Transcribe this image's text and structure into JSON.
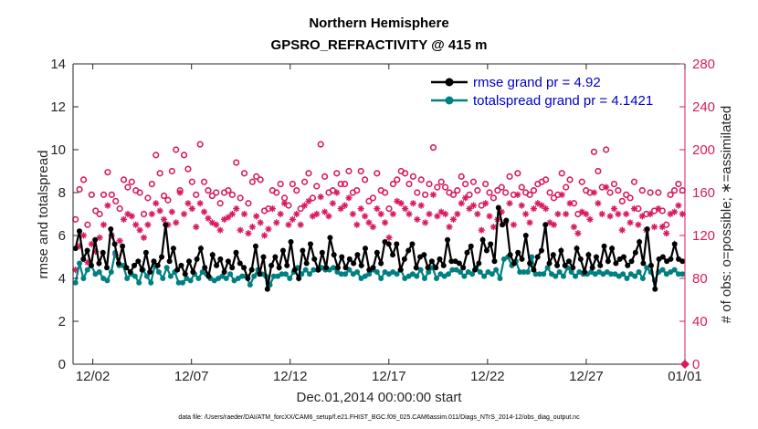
{
  "chart_data": {
    "type": "line",
    "title": "Northern Hemisphere",
    "subtitle": "GPSRO_REFRACTIVITY @ 415 m",
    "xlabel": "Dec.01,2014 00:00:00 start",
    "ylabel": "rmse and totalspread",
    "y2label": "# of obs: o=possible; ∗=assimilated",
    "xlim": [
      0,
      31
    ],
    "ylim": [
      0,
      14
    ],
    "y2lim": [
      0,
      280
    ],
    "x_ticks": [
      {
        "value": 1,
        "label": "12/02"
      },
      {
        "value": 6,
        "label": "12/07"
      },
      {
        "value": 11,
        "label": "12/12"
      },
      {
        "value": 16,
        "label": "12/17"
      },
      {
        "value": 21,
        "label": "12/22"
      },
      {
        "value": 26,
        "label": "12/27"
      },
      {
        "value": 31,
        "label": "01/01"
      }
    ],
    "y_ticks": [
      0,
      2,
      4,
      6,
      8,
      10,
      12,
      14
    ],
    "y2_ticks": [
      0,
      40,
      80,
      120,
      160,
      200,
      240,
      280
    ],
    "colors": {
      "rmse": "#000000",
      "spread": "#008080",
      "obs": "#d81b60",
      "legend_text": "#0000cc",
      "axis": "#262626"
    },
    "legend": [
      {
        "label": "rmse grand pr = 4.92",
        "series": "rmse"
      },
      {
        "label": "totalspread grand pr = 4.1421",
        "series": "spread"
      }
    ],
    "series": [
      {
        "name": "rmse",
        "axis": "left",
        "values": [
          5.4,
          6.2,
          4.9,
          5.3,
          4.6,
          5.8,
          4.7,
          5.2,
          4.5,
          6.3,
          5.6,
          4.7,
          5.5,
          4.5,
          4.3,
          4.6,
          4.8,
          4.4,
          5.2,
          4.3,
          4.8,
          4.6,
          5.0,
          6.5,
          4.8,
          5.4,
          4.4,
          4.6,
          4.2,
          4.8,
          4.3,
          4.9,
          5.4,
          4.5,
          4.1,
          5.1,
          4.6,
          4.9,
          4.3,
          4.8,
          4.5,
          5.2,
          4.7,
          4.5,
          4.0,
          4.4,
          5.5,
          4.2,
          5.0,
          3.5,
          4.6,
          5.0,
          4.5,
          5.3,
          4.6,
          5.7,
          4.4,
          4.0,
          5.3,
          4.7,
          5.6,
          4.9,
          4.4,
          5.2,
          4.5,
          5.9,
          5.1,
          4.5,
          5.0,
          4.5,
          4.9,
          4.7,
          5.1,
          4.6,
          5.4,
          4.4,
          4.5,
          5.2,
          4.7,
          5.7,
          5.6,
          5.1,
          5.6,
          4.4,
          4.9,
          5.3,
          5.6,
          4.5,
          5.0,
          5.1,
          4.5,
          4.8,
          4.5,
          4.9,
          4.6,
          5.8,
          4.8,
          4.8,
          4.7,
          4.5,
          5.2,
          5.5,
          4.4,
          4.7,
          5.8,
          5.3,
          5.6,
          4.8,
          7.3,
          6.5,
          6.7,
          5.1,
          4.7,
          5.2,
          4.9,
          6.0,
          4.7,
          4.4,
          5.0,
          5.3,
          6.5,
          4.7,
          5.1,
          4.6,
          5.3,
          4.6,
          4.8,
          4.5,
          5.4,
          4.9,
          4.3,
          5.1,
          4.5,
          5.0,
          4.6,
          5.5,
          4.8,
          5.4,
          4.7,
          4.9,
          5.0,
          4.6,
          4.8,
          5.2,
          5.7,
          4.7,
          6.3,
          4.6,
          3.5,
          4.9,
          5.0,
          4.8,
          4.9,
          5.6,
          4.9,
          4.8
        ],
        "grand": 4.92
      },
      {
        "name": "totalspread",
        "axis": "left",
        "values": [
          3.8,
          4.7,
          4.0,
          4.4,
          4.6,
          4.2,
          4.3,
          4.0,
          3.9,
          4.3,
          5.2,
          4.6,
          4.6,
          4.0,
          4.2,
          4.1,
          3.8,
          4.4,
          4.1,
          3.8,
          4.6,
          4.3,
          4.0,
          4.5,
          4.1,
          4.3,
          3.8,
          3.8,
          4.0,
          3.9,
          4.2,
          4.0,
          4.3,
          4.2,
          4.0,
          3.9,
          4.0,
          4.1,
          4.0,
          4.2,
          3.9,
          4.0,
          4.1,
          4.1,
          3.7,
          4.1,
          4.4,
          4.2,
          4.1,
          3.7,
          4.1,
          4.1,
          4.2,
          4.2,
          4.0,
          4.3,
          4.5,
          4.2,
          4.4,
          4.2,
          4.4,
          4.4,
          4.5,
          4.4,
          4.4,
          4.5,
          4.3,
          4.2,
          4.2,
          4.4,
          4.2,
          4.3,
          4.0,
          4.1,
          4.2,
          4.4,
          4.3,
          4.0,
          4.3,
          4.2,
          4.3,
          4.2,
          4.4,
          4.0,
          4.1,
          4.2,
          4.1,
          4.4,
          4.0,
          4.3,
          4.5,
          4.0,
          4.2,
          4.1,
          4.2,
          4.4,
          4.4,
          4.3,
          4.1,
          4.3,
          4.2,
          4.5,
          4.3,
          4.1,
          4.3,
          4.2,
          4.4,
          4.0,
          4.9,
          5.0,
          4.6,
          4.8,
          4.3,
          4.3,
          4.3,
          5.0,
          4.2,
          4.2,
          4.2,
          4.5,
          4.2,
          4.1,
          4.3,
          4.1,
          4.5,
          4.3,
          4.1,
          4.3,
          4.2,
          4.2,
          4.3,
          4.2,
          4.3,
          4.2,
          4.3,
          4.2,
          4.2,
          4.1,
          4.2,
          4.0,
          4.2,
          4.1,
          4.3,
          4.0,
          4.5,
          4.3,
          3.9,
          4.3,
          4.4,
          4.2,
          4.3,
          4.4,
          4.2,
          4.2
        ],
        "grand": 4.1421
      },
      {
        "name": "obs_possible",
        "axis": "right",
        "marker": "o",
        "values": [
          135,
          163,
          172,
          130,
          158,
          143,
          140,
          158,
          179,
          158,
          152,
          145,
          172,
          165,
          170,
          162,
          160,
          140,
          155,
          168,
          195,
          178,
          157,
          153,
          180,
          200,
          162,
          195,
          182,
          170,
          158,
          205,
          170,
          162,
          157,
          160,
          150,
          160,
          162,
          158,
          188,
          155,
          178,
          150,
          170,
          175,
          172,
          143,
          145,
          162,
          160,
          168,
          155,
          148,
          168,
          162,
          145,
          170,
          178,
          155,
          166,
          205,
          175,
          160,
          162,
          178,
          168,
          168,
          180,
          160,
          162,
          180,
          172,
          152,
          155,
          178,
          162,
          160,
          145,
          168,
          172,
          180,
          178,
          168,
          175,
          160,
          172,
          158,
          168,
          202,
          165,
          170,
          165,
          160,
          158,
          162,
          175,
          168,
          158,
          170,
          162,
          148,
          168,
          160,
          155,
          162,
          165,
          160,
          175,
          158,
          178,
          165,
          160,
          158,
          162,
          168,
          170,
          172,
          160,
          155,
          158,
          178,
          165,
          172,
          150,
          140,
          170,
          162,
          160,
          198,
          180,
          165,
          200,
          160,
          168,
          162,
          152,
          158,
          155,
          170,
          145,
          162,
          140,
          160,
          143,
          160,
          143,
          130,
          158,
          162,
          168,
          162
        ],
        "grand": null
      },
      {
        "name": "obs_assimilated",
        "axis": "right",
        "marker": "*",
        "values": [
          88,
          110,
          120,
          95,
          112,
          105,
          118,
          130,
          148,
          120,
          102,
          115,
          135,
          140,
          138,
          130,
          125,
          118,
          130,
          140,
          150,
          143,
          135,
          130,
          142,
          132,
          160,
          140,
          150,
          145,
          128,
          150,
          142,
          136,
          132,
          130,
          125,
          135,
          137,
          140,
          145,
          125,
          140,
          122,
          128,
          138,
          132,
          120,
          126,
          145,
          132,
          140,
          150,
          130,
          135,
          140,
          130,
          148,
          152,
          138,
          140,
          156,
          142,
          138,
          150,
          160,
          145,
          148,
          155,
          140,
          130,
          145,
          138,
          132,
          128,
          145,
          140,
          132,
          118,
          140,
          152,
          150,
          145,
          140,
          150,
          135,
          148,
          132,
          140,
          158,
          138,
          142,
          140,
          128,
          135,
          140,
          150,
          155,
          145,
          148,
          140,
          125,
          150,
          138,
          128,
          135,
          142,
          132,
          150,
          130,
          158,
          148,
          140,
          132,
          145,
          150,
          148,
          145,
          132,
          130,
          140,
          158,
          140,
          150,
          128,
          122,
          142,
          140,
          135,
          160,
          150,
          140,
          165,
          138,
          145,
          140,
          125,
          140,
          132,
          145,
          130,
          138,
          125,
          140,
          128,
          145,
          128,
          122,
          140,
          142,
          148,
          140
        ],
        "grand": null
      }
    ]
  },
  "footnote": "data file: /Users/raeder/DAI/ATM_forcXX/CAM6_setup/f.e21.FHIST_BGC.f09_025.CAM6assim.011/Diags_NTrS_2014-12/obs_diag_output.nc"
}
